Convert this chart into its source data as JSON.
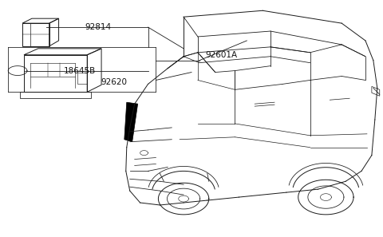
{
  "background_color": "#ffffff",
  "line_color": "#1a1a1a",
  "label_92814": "92814",
  "label_18645b": "18645B",
  "label_92601a": "92601A",
  "label_92620": "92620",
  "label_fontsize": 7.5,
  "lw_car": 0.7,
  "lw_leader": 0.6
}
